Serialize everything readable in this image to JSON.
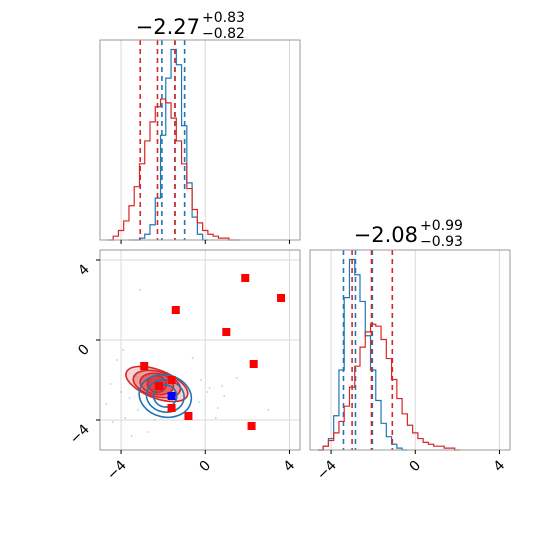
{
  "colors": {
    "red": "#d62728",
    "blue": "#1f77b4",
    "red_marker": "#ff0000",
    "blue_marker": "#0000ff",
    "grid": "#d9d9d9",
    "axes": "#999999"
  },
  "chart_data": [
    {
      "panel": "hist-param-1",
      "type": "histogram",
      "title": {
        "main": "−2.27",
        "sup": "+0.83",
        "sub": "−0.82"
      },
      "xlim": [
        -5,
        4.5
      ],
      "xticks": [
        -4,
        0,
        4
      ],
      "series": [
        {
          "color": "#1f77b4",
          "centers": [
            -3.5,
            -3.25,
            -3.0,
            -2.75,
            -2.5,
            -2.25,
            -2.0,
            -1.75,
            -1.5,
            -1.25,
            -1.0,
            -0.75,
            -0.5,
            -0.25,
            0.0
          ],
          "density": [
            0.0,
            0.0,
            0.01,
            0.03,
            0.08,
            0.22,
            0.55,
            0.85,
            1.0,
            0.92,
            0.6,
            0.3,
            0.12,
            0.03,
            0.0
          ],
          "quantiles": [
            -2.06,
            -1.44,
            -0.98
          ]
        },
        {
          "color": "#d62728",
          "centers": [
            -4.5,
            -4.25,
            -4.0,
            -3.75,
            -3.5,
            -3.25,
            -3.0,
            -2.75,
            -2.5,
            -2.25,
            -2.0,
            -1.75,
            -1.5,
            -1.25,
            -1.0,
            -0.75,
            -0.5,
            -0.25,
            0.0,
            0.25,
            0.5,
            0.75,
            1.0,
            1.25,
            1.5
          ],
          "density": [
            0.0,
            0.02,
            0.05,
            0.1,
            0.18,
            0.28,
            0.4,
            0.52,
            0.62,
            0.7,
            0.74,
            0.72,
            0.64,
            0.52,
            0.4,
            0.27,
            0.16,
            0.09,
            0.05,
            0.03,
            0.02,
            0.01,
            0.01,
            0.0,
            0.0
          ],
          "quantiles": [
            -3.09,
            -2.27,
            -1.44
          ]
        }
      ]
    },
    {
      "panel": "hist-param-2",
      "type": "histogram",
      "title": {
        "main": "−2.08",
        "sup": "+0.99",
        "sub": "−0.93"
      },
      "xlim": [
        -5,
        4.5
      ],
      "xticks": [
        -4,
        0,
        4
      ],
      "series": [
        {
          "color": "#1f77b4",
          "centers": [
            -4.5,
            -4.25,
            -4.0,
            -3.75,
            -3.5,
            -3.25,
            -3.0,
            -2.75,
            -2.5,
            -2.25,
            -2.0,
            -1.75,
            -1.5,
            -1.25,
            -1.0,
            -0.75,
            -0.5
          ],
          "density": [
            0.0,
            0.02,
            0.06,
            0.18,
            0.42,
            0.8,
            1.0,
            0.92,
            0.78,
            0.6,
            0.42,
            0.26,
            0.14,
            0.07,
            0.03,
            0.01,
            0.0
          ],
          "quantiles": [
            -3.41,
            -2.84,
            -2.04
          ]
        },
        {
          "color": "#d62728",
          "centers": [
            -4.5,
            -4.25,
            -4.0,
            -3.75,
            -3.5,
            -3.25,
            -3.0,
            -2.75,
            -2.5,
            -2.25,
            -2.0,
            -1.75,
            -1.5,
            -1.25,
            -1.0,
            -0.75,
            -0.5,
            -0.25,
            0.0,
            0.25,
            0.5,
            0.75,
            1.0,
            1.25,
            1.5,
            1.75,
            2.0
          ],
          "density": [
            0.0,
            0.02,
            0.05,
            0.09,
            0.15,
            0.23,
            0.33,
            0.44,
            0.54,
            0.62,
            0.66,
            0.65,
            0.58,
            0.48,
            0.37,
            0.27,
            0.19,
            0.13,
            0.09,
            0.06,
            0.04,
            0.03,
            0.02,
            0.02,
            0.01,
            0.01,
            0.0
          ],
          "quantiles": [
            -3.0,
            -2.08,
            -1.09
          ]
        }
      ]
    },
    {
      "panel": "corner-2d",
      "type": "contour-scatter",
      "xlim": [
        -5,
        4.5
      ],
      "ylim": [
        -5.5,
        4.5
      ],
      "xticks": [
        -4,
        0,
        4
      ],
      "yticks": [
        -4,
        0,
        4
      ],
      "contours": [
        {
          "color": "#d62728",
          "center": [
            -2.3,
            -2.2
          ],
          "levels": [
            [
              1.55,
              0.7,
              0.7
            ],
            [
              1.15,
              0.62,
              0.52
            ],
            [
              0.8,
              0.52,
              0.38
            ],
            [
              0.45,
              0.42,
              0.22
            ]
          ],
          "fill_opacity": [
            0.2,
            0.32,
            0.45,
            0.62
          ]
        },
        {
          "color": "#1f77b4",
          "center": [
            -1.9,
            -2.8
          ],
          "levels": [
            [
              1.25,
              1.05,
              0.45
            ],
            [
              0.9,
              0.8,
              0.38
            ],
            [
              0.55,
              0.55,
              0.3
            ]
          ],
          "fill_opacity": [
            0,
            0,
            0
          ]
        }
      ],
      "markers_red": [
        [
          1.9,
          3.1
        ],
        [
          3.6,
          2.1
        ],
        [
          -1.4,
          1.5
        ],
        [
          1.0,
          0.4
        ],
        [
          2.3,
          -1.2
        ],
        [
          -2.9,
          -1.3
        ],
        [
          -2.2,
          -2.3
        ],
        [
          -1.6,
          -2.0
        ],
        [
          -1.6,
          -3.4
        ],
        [
          -0.8,
          -3.8
        ],
        [
          2.2,
          -4.3
        ]
      ],
      "markers_blue": [
        [
          -1.6,
          -2.8
        ]
      ],
      "scatter_red": [
        [
          -4.5,
          -2.2
        ],
        [
          -4.2,
          -1.0
        ],
        [
          -3.8,
          -3.9
        ],
        [
          -3.5,
          -4.8
        ],
        [
          -3.3,
          -1.8
        ],
        [
          -4.7,
          -3.2
        ],
        [
          -4.0,
          -2.6
        ],
        [
          -3.9,
          -0.5
        ],
        [
          -0.6,
          -0.9
        ],
        [
          0.2,
          -2.4
        ],
        [
          0.5,
          -3.9
        ],
        [
          0.9,
          -2.8
        ],
        [
          -3.1,
          2.5
        ],
        [
          -2.7,
          -4.6
        ],
        [
          -4.4,
          -4.1
        ],
        [
          3.0,
          -3.5
        ],
        [
          1.5,
          -1.9
        ]
      ],
      "scatter_blue": [
        [
          -0.3,
          -3.1
        ],
        [
          0.1,
          -2.6
        ],
        [
          0.6,
          -3.4
        ],
        [
          -3.6,
          -2.9
        ],
        [
          -3.2,
          -3.5
        ],
        [
          -0.2,
          -2.0
        ],
        [
          0.8,
          -2.3
        ],
        [
          -2.4,
          -4.0
        ]
      ]
    }
  ]
}
